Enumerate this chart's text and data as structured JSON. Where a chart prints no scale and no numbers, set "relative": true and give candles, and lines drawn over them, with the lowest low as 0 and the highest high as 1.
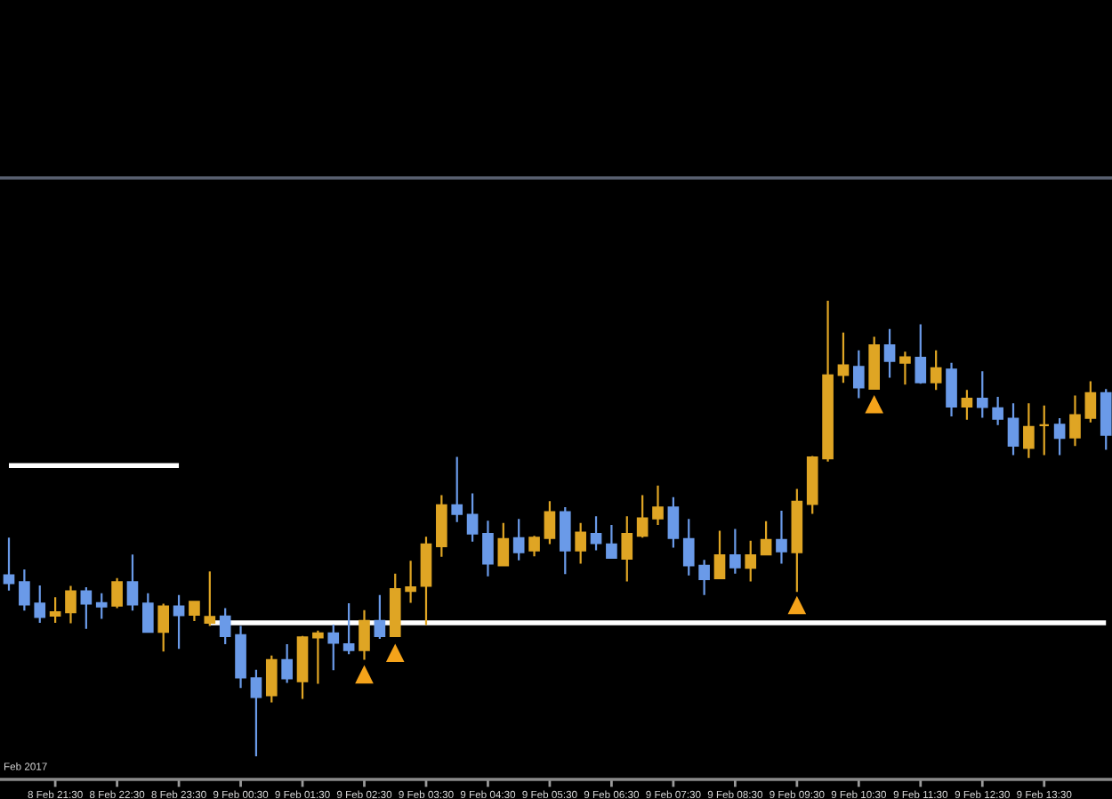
{
  "chart_data": {
    "type": "candlestick",
    "relative": true,
    "tick_labels": "x",
    "categories": [
      null,
      null,
      null,
      "8 Feb 21:30",
      null,
      null,
      null,
      "8 Feb 22:30",
      null,
      null,
      null,
      "8 Feb 23:30",
      null,
      null,
      null,
      "9 Feb 00:30",
      null,
      null,
      null,
      "9 Feb 01:30",
      null,
      null,
      null,
      "9 Feb 02:30",
      null,
      null,
      null,
      "9 Feb 03:30",
      null,
      null,
      null,
      "9 Feb 04:30",
      null,
      null,
      null,
      "9 Feb 05:30",
      null,
      null,
      null,
      "9 Feb 06:30",
      null,
      null,
      null,
      "9 Feb 07:30",
      null,
      null,
      null,
      "9 Feb 08:30",
      null,
      null,
      null,
      "9 Feb 09:30",
      null,
      null,
      null,
      "9 Feb 10:30",
      null,
      null,
      null,
      "9 Feb 11:30",
      null,
      null,
      null,
      "9 Feb 12:30",
      null,
      null,
      null,
      "9 Feb 13:30",
      null,
      null,
      null,
      null
    ],
    "ohlc": [
      [
        0.397,
        0.48,
        0.364,
        0.38
      ],
      [
        0.382,
        0.41,
        0.32,
        0.333
      ],
      [
        0.335,
        0.375,
        0.293,
        0.306
      ],
      [
        0.309,
        0.349,
        0.293,
        0.316
      ],
      [
        0.316,
        0.374,
        0.292,
        0.362
      ],
      [
        0.362,
        0.371,
        0.28,
        0.335
      ],
      [
        0.336,
        0.358,
        0.302,
        0.329
      ],
      [
        0.331,
        0.391,
        0.325,
        0.382
      ],
      [
        0.382,
        0.443,
        0.32,
        0.333
      ],
      [
        0.335,
        0.358,
        0.271,
        0.273
      ],
      [
        0.273,
        0.335,
        0.23,
        0.329
      ],
      [
        0.329,
        0.354,
        0.236,
        0.31
      ],
      [
        0.311,
        0.341,
        0.297,
        0.339
      ],
      [
        0.293,
        0.406,
        0.286,
        0.306
      ],
      [
        0.307,
        0.325,
        0.246,
        0.264
      ],
      [
        0.266,
        0.286,
        0.15,
        0.173
      ],
      [
        0.171,
        0.19,
        0.0,
        0.13
      ],
      [
        0.134,
        0.221,
        0.118,
        0.211
      ],
      [
        0.211,
        0.246,
        0.161,
        0.171
      ],
      [
        0.165,
        0.264,
        0.126,
        0.261
      ],
      [
        0.261,
        0.276,
        0.159,
        0.27
      ],
      [
        0.27,
        0.289,
        0.189,
        0.249
      ],
      [
        0.246,
        0.336,
        0.224,
        0.233
      ],
      [
        0.233,
        0.321,
        0.212,
        0.297
      ],
      [
        0.297,
        0.354,
        0.258,
        0.264
      ],
      [
        0.264,
        0.401,
        0.262,
        0.367
      ],
      [
        0.363,
        0.429,
        0.337,
        0.371
      ],
      [
        0.374,
        0.482,
        0.288,
        0.465
      ],
      [
        0.461,
        0.573,
        0.438,
        0.551
      ],
      [
        0.551,
        0.657,
        0.514,
        0.532
      ],
      [
        0.53,
        0.577,
        0.471,
        0.489
      ],
      [
        0.488,
        0.517,
        0.395,
        0.423
      ],
      [
        0.419,
        0.512,
        0.418,
        0.477
      ],
      [
        0.479,
        0.521,
        0.43,
        0.448
      ],
      [
        0.452,
        0.484,
        0.439,
        0.48
      ],
      [
        0.479,
        0.56,
        0.466,
        0.536
      ],
      [
        0.536,
        0.547,
        0.4,
        0.452
      ],
      [
        0.452,
        0.512,
        0.423,
        0.491
      ],
      [
        0.488,
        0.527,
        0.452,
        0.468
      ],
      [
        0.465,
        0.508,
        0.434,
        0.436
      ],
      [
        0.434,
        0.527,
        0.384,
        0.488
      ],
      [
        0.484,
        0.573,
        0.48,
        0.522
      ],
      [
        0.522,
        0.594,
        0.508,
        0.546
      ],
      [
        0.546,
        0.569,
        0.458,
        0.479
      ],
      [
        0.477,
        0.521,
        0.397,
        0.419
      ],
      [
        0.418,
        0.431,
        0.354,
        0.389
      ],
      [
        0.391,
        0.495,
        0.389,
        0.441
      ],
      [
        0.441,
        0.499,
        0.401,
        0.415
      ],
      [
        0.414,
        0.473,
        0.384,
        0.441
      ],
      [
        0.443,
        0.516,
        0.441,
        0.475
      ],
      [
        0.475,
        0.539,
        0.423,
        0.45
      ],
      [
        0.448,
        0.587,
        0.361,
        0.559
      ],
      [
        0.554,
        0.659,
        0.532,
        0.656
      ],
      [
        0.654,
        1.0,
        0.647,
        0.836
      ],
      [
        0.837,
        0.93,
        0.82,
        0.858
      ],
      [
        0.855,
        0.891,
        0.786,
        0.81
      ],
      [
        0.807,
        0.921,
        0.806,
        0.902
      ],
      [
        0.902,
        0.938,
        0.831,
        0.868
      ],
      [
        0.864,
        0.888,
        0.816,
        0.876
      ],
      [
        0.875,
        0.948,
        0.818,
        0.821
      ],
      [
        0.821,
        0.891,
        0.804,
        0.852
      ],
      [
        0.849,
        0.864,
        0.746,
        0.768
      ],
      [
        0.768,
        0.804,
        0.739,
        0.785
      ],
      [
        0.785,
        0.845,
        0.743,
        0.767
      ],
      [
        0.764,
        0.789,
        0.727,
        0.741
      ],
      [
        0.741,
        0.775,
        0.661,
        0.682
      ],
      [
        0.677,
        0.775,
        0.655,
        0.723
      ],
      [
        0.727,
        0.77,
        0.661,
        0.727
      ],
      [
        0.728,
        0.742,
        0.661,
        0.699
      ],
      [
        0.7,
        0.792,
        0.681,
        0.749
      ],
      [
        0.743,
        0.823,
        0.733,
        0.797
      ],
      [
        0.797,
        0.806,
        0.673,
        0.706
      ]
    ],
    "colors": [
      "#6a9ae8",
      "#6a9ae8",
      "#6a9ae8",
      "#dfa524",
      "#dfa524",
      "#6a9ae8",
      "#6a9ae8",
      "#dfa524",
      "#6a9ae8",
      "#6a9ae8",
      "#dfa524",
      "#6a9ae8",
      "#dfa524",
      "#dfa524",
      "#6a9ae8",
      "#6a9ae8",
      "#6a9ae8",
      "#dfa524",
      "#6a9ae8",
      "#dfa524",
      "#dfa524",
      "#6a9ae8",
      "#6a9ae8",
      "#dfa524",
      "#6a9ae8",
      "#dfa524",
      "#dfa524",
      "#dfa524",
      "#dfa524",
      "#6a9ae8",
      "#6a9ae8",
      "#6a9ae8",
      "#dfa524",
      "#6a9ae8",
      "#dfa524",
      "#dfa524",
      "#6a9ae8",
      "#dfa524",
      "#6a9ae8",
      "#6a9ae8",
      "#dfa524",
      "#dfa524",
      "#dfa524",
      "#6a9ae8",
      "#6a9ae8",
      "#6a9ae8",
      "#dfa524",
      "#6a9ae8",
      "#dfa524",
      "#dfa524",
      "#6a9ae8",
      "#dfa524",
      "#dfa524",
      "#dfa524",
      "#dfa524",
      "#6a9ae8",
      "#dfa524",
      "#6a9ae8",
      "#dfa524",
      "#6a9ae8",
      "#dfa524",
      "#6a9ae8",
      "#dfa524",
      "#6a9ae8",
      "#6a9ae8",
      "#6a9ae8",
      "#dfa524",
      "#dfa524",
      "#6a9ae8",
      "#dfa524",
      "#dfa524",
      "#6a9ae8"
    ],
    "annotations": [
      "Feb 2017"
    ],
    "series": [
      {
        "type": "line",
        "color": "#ffffff",
        "values": [
          0.638,
          0.638,
          0.638,
          0.638,
          0.638,
          0.638,
          0.638,
          0.638,
          0.638,
          0.638,
          0.638,
          0.638,
          null,
          null,
          null,
          null,
          null,
          null,
          null,
          null,
          null,
          null,
          null,
          null,
          null,
          null,
          null,
          null,
          null,
          null,
          null,
          null,
          null,
          null,
          null,
          null,
          null,
          null,
          null,
          null,
          null,
          null,
          null,
          null,
          null,
          null,
          null,
          null,
          null,
          null,
          null,
          null,
          null,
          null,
          null,
          null,
          null,
          null,
          null,
          null,
          null,
          null,
          null,
          null,
          null,
          null,
          null,
          null,
          null,
          null,
          null,
          null
        ]
      },
      {
        "type": "line",
        "color": "#ffffff",
        "values": [
          null,
          null,
          null,
          null,
          null,
          null,
          null,
          null,
          null,
          null,
          null,
          null,
          null,
          0.293,
          0.293,
          0.293,
          0.293,
          0.293,
          0.293,
          0.293,
          0.293,
          0.293,
          0.293,
          0.293,
          0.293,
          0.293,
          0.293,
          0.293,
          0.293,
          0.293,
          0.293,
          0.293,
          0.293,
          0.293,
          0.293,
          0.293,
          0.293,
          0.293,
          0.293,
          0.293,
          0.293,
          0.293,
          0.293,
          0.293,
          0.293,
          0.293,
          0.293,
          0.293,
          0.293,
          0.293,
          0.293,
          0.293,
          0.293,
          0.293,
          0.293,
          0.293,
          0.293,
          0.293,
          0.293,
          0.293,
          0.293,
          0.293,
          0.293,
          0.293,
          0.293,
          0.293,
          0.293,
          0.293,
          0.293,
          0.293,
          0.293,
          0.293
        ]
      },
      {
        "type": "scatter",
        "color": "#f5a31a",
        "marker": "triangle",
        "values": [
          null,
          null,
          null,
          null,
          null,
          null,
          null,
          null,
          null,
          null,
          null,
          null,
          null,
          null,
          null,
          null,
          null,
          null,
          null,
          null,
          null,
          null,
          null,
          0.18,
          null,
          0.227,
          null,
          null,
          null,
          null,
          null,
          null,
          null,
          null,
          null,
          null,
          null,
          null,
          null,
          null,
          null,
          null,
          null,
          null,
          null,
          null,
          null,
          null,
          null,
          null,
          null,
          0.332,
          null,
          null,
          null,
          null,
          0.773,
          null,
          null,
          null,
          null,
          null,
          null,
          null,
          null,
          null,
          null,
          null,
          null,
          null,
          null,
          null
        ]
      }
    ]
  }
}
